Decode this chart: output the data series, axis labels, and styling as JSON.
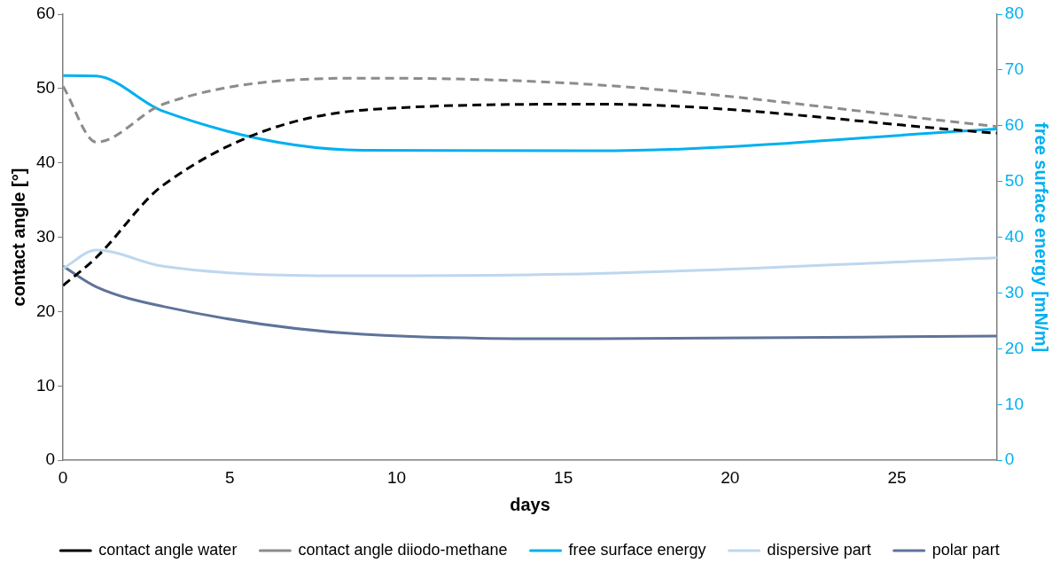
{
  "chart_data": {
    "type": "line",
    "xlabel": "days",
    "ylabel": "contact angle [°]",
    "y2label": "free surface energy [mN/m]",
    "x": [
      0,
      1,
      3,
      9,
      16,
      28
    ],
    "xlim": [
      0,
      28
    ],
    "xticks": [
      0,
      5,
      10,
      15,
      20,
      25
    ],
    "ylim": [
      0,
      60
    ],
    "yticks": [
      0,
      10,
      20,
      30,
      40,
      50,
      60
    ],
    "y2lim": [
      0,
      80
    ],
    "y2ticks": [
      0,
      10,
      20,
      30,
      40,
      50,
      60,
      70,
      80
    ],
    "grid": false,
    "legend": "bottom",
    "marker": "none",
    "series": [
      {
        "name": "contact angle water",
        "color": "#000000",
        "line_style": "dashed",
        "values": [
          23.5,
          27.3,
          37.0,
          47.1,
          47.9,
          44.0
        ]
      },
      {
        "name": "contact angle diiodo-methane",
        "color": "#8c8c8c",
        "line_style": "dashed",
        "values": [
          50.3,
          42.8,
          47.9,
          51.4,
          50.5,
          44.9
        ]
      },
      {
        "name": "free surface energy",
        "color": "#00b0f0",
        "line_style": "solid",
        "axis": "y2",
        "values": [
          69.0,
          68.9,
          62.6,
          55.6,
          55.5,
          59.4
        ]
      },
      {
        "name": "dispersive part",
        "color": "#bdd7ee",
        "line_style": "solid",
        "axis": "y2",
        "values": [
          34.4,
          37.7,
          34.8,
          33.1,
          33.5,
          36.3
        ]
      },
      {
        "name": "polar part",
        "color": "#5f7399",
        "line_style": "solid",
        "axis": "y2",
        "values": [
          34.8,
          31.1,
          27.6,
          22.6,
          21.8,
          22.3
        ]
      }
    ]
  }
}
